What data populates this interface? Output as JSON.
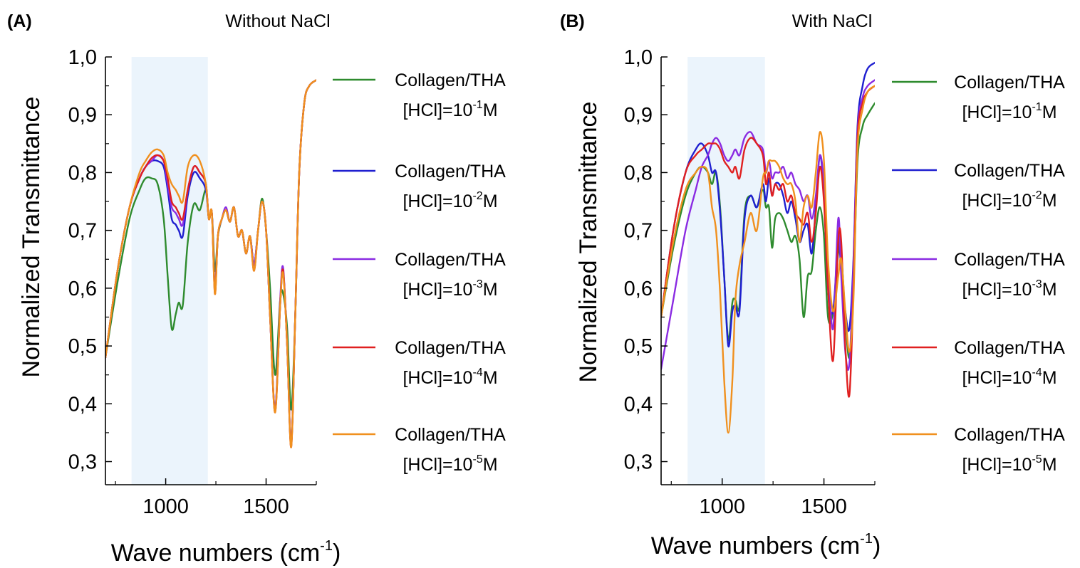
{
  "chart_data": [
    {
      "type": "line",
      "panel_label": "(A)",
      "title": "Without NaCl",
      "xlabel": "Wave numbers (cm",
      "xlabel_sup": "-1",
      "xlabel_end": ")",
      "ylabel": "Normalized Transmittance",
      "xlim": [
        700,
        1750
      ],
      "ylim": [
        0.26,
        1.0
      ],
      "xticks": [
        1000,
        1500
      ],
      "xtick_labels": [
        "1000",
        "1500"
      ],
      "yticks": [
        0.3,
        0.4,
        0.5,
        0.6,
        0.7,
        0.8,
        0.9,
        1.0
      ],
      "ytick_labels": [
        "0,3",
        "0,4",
        "0,5",
        "0,6",
        "0,7",
        "0,8",
        "0,9",
        "1,0"
      ],
      "highlight_band": [
        830,
        1210
      ],
      "series": [
        {
          "name": "Collagen/THA",
          "conc_prefix": "[HCl]=10",
          "conc_exp": "-1",
          "conc_suffix": "M",
          "color": "#2e8b2e",
          "x": [
            700,
            760,
            820,
            870,
            900,
            930,
            960,
            990,
            1010,
            1030,
            1050,
            1065,
            1085,
            1110,
            1140,
            1170,
            1200,
            1215,
            1230,
            1245,
            1260,
            1280,
            1300,
            1320,
            1340,
            1360,
            1380,
            1400,
            1420,
            1440,
            1460,
            1480,
            1500,
            1520,
            1545,
            1570,
            1585,
            1605,
            1625,
            1645,
            1665,
            1690,
            1715,
            1750
          ],
          "y": [
            0.48,
            0.61,
            0.72,
            0.77,
            0.79,
            0.79,
            0.78,
            0.72,
            0.62,
            0.53,
            0.555,
            0.575,
            0.57,
            0.68,
            0.745,
            0.735,
            0.77,
            0.72,
            0.73,
            0.63,
            0.69,
            0.72,
            0.735,
            0.715,
            0.74,
            0.69,
            0.7,
            0.66,
            0.69,
            0.64,
            0.7,
            0.755,
            0.7,
            0.6,
            0.45,
            0.58,
            0.59,
            0.53,
            0.39,
            0.55,
            0.8,
            0.92,
            0.95,
            0.96
          ]
        },
        {
          "name": "Collagen/THA",
          "conc_prefix": "[HCl]=10",
          "conc_exp": "-2",
          "conc_suffix": "M",
          "color": "#1f1fd0",
          "x": [
            700,
            760,
            820,
            870,
            900,
            930,
            960,
            990,
            1010,
            1030,
            1050,
            1065,
            1085,
            1110,
            1140,
            1170,
            1200,
            1215,
            1230,
            1245,
            1260,
            1280,
            1300,
            1320,
            1340,
            1360,
            1380,
            1400,
            1420,
            1440,
            1460,
            1480,
            1500,
            1520,
            1545,
            1570,
            1585,
            1605,
            1625,
            1645,
            1665,
            1690,
            1715,
            1750
          ],
          "y": [
            0.48,
            0.63,
            0.74,
            0.79,
            0.81,
            0.82,
            0.82,
            0.81,
            0.77,
            0.72,
            0.71,
            0.7,
            0.69,
            0.76,
            0.8,
            0.79,
            0.77,
            0.72,
            0.73,
            0.6,
            0.69,
            0.72,
            0.735,
            0.715,
            0.74,
            0.69,
            0.7,
            0.66,
            0.69,
            0.64,
            0.7,
            0.75,
            0.7,
            0.55,
            0.39,
            0.57,
            0.63,
            0.5,
            0.33,
            0.55,
            0.8,
            0.92,
            0.95,
            0.96
          ]
        },
        {
          "name": "Collagen/THA",
          "conc_prefix": "[HCl]=10",
          "conc_exp": "-3",
          "conc_suffix": "M",
          "color": "#8a2be2",
          "x": [
            700,
            760,
            820,
            870,
            900,
            930,
            960,
            990,
            1010,
            1030,
            1050,
            1065,
            1085,
            1110,
            1140,
            1170,
            1200,
            1215,
            1230,
            1245,
            1260,
            1280,
            1300,
            1320,
            1340,
            1360,
            1380,
            1400,
            1420,
            1440,
            1460,
            1480,
            1500,
            1520,
            1545,
            1570,
            1585,
            1605,
            1625,
            1645,
            1665,
            1690,
            1715,
            1750
          ],
          "y": [
            0.48,
            0.63,
            0.74,
            0.79,
            0.81,
            0.82,
            0.83,
            0.82,
            0.78,
            0.74,
            0.73,
            0.72,
            0.71,
            0.77,
            0.81,
            0.8,
            0.78,
            0.72,
            0.73,
            0.6,
            0.69,
            0.72,
            0.74,
            0.715,
            0.74,
            0.69,
            0.7,
            0.66,
            0.69,
            0.64,
            0.7,
            0.75,
            0.7,
            0.55,
            0.39,
            0.58,
            0.635,
            0.5,
            0.33,
            0.55,
            0.8,
            0.92,
            0.95,
            0.96
          ]
        },
        {
          "name": "Collagen/THA",
          "conc_prefix": "[HCl]=10",
          "conc_exp": "-4",
          "conc_suffix": "M",
          "color": "#e02020",
          "x": [
            700,
            760,
            820,
            870,
            900,
            930,
            960,
            990,
            1010,
            1030,
            1050,
            1065,
            1085,
            1110,
            1140,
            1170,
            1200,
            1215,
            1230,
            1245,
            1260,
            1280,
            1300,
            1320,
            1340,
            1360,
            1380,
            1400,
            1420,
            1440,
            1460,
            1480,
            1500,
            1520,
            1545,
            1570,
            1585,
            1605,
            1625,
            1645,
            1665,
            1690,
            1715,
            1750
          ],
          "y": [
            0.48,
            0.63,
            0.74,
            0.79,
            0.81,
            0.825,
            0.83,
            0.82,
            0.79,
            0.75,
            0.74,
            0.73,
            0.72,
            0.77,
            0.81,
            0.8,
            0.78,
            0.72,
            0.73,
            0.59,
            0.69,
            0.72,
            0.735,
            0.715,
            0.74,
            0.69,
            0.7,
            0.66,
            0.69,
            0.63,
            0.7,
            0.75,
            0.7,
            0.55,
            0.385,
            0.57,
            0.63,
            0.5,
            0.325,
            0.55,
            0.8,
            0.92,
            0.95,
            0.96
          ]
        },
        {
          "name": "Collagen/THA",
          "conc_prefix": "[HCl]=10",
          "conc_exp": "-5",
          "conc_suffix": "M",
          "color": "#f0901e",
          "x": [
            700,
            760,
            820,
            870,
            900,
            930,
            960,
            990,
            1010,
            1030,
            1050,
            1065,
            1085,
            1110,
            1140,
            1170,
            1200,
            1215,
            1230,
            1245,
            1260,
            1280,
            1300,
            1320,
            1340,
            1360,
            1380,
            1400,
            1420,
            1440,
            1460,
            1480,
            1500,
            1520,
            1545,
            1570,
            1585,
            1605,
            1625,
            1645,
            1665,
            1690,
            1715,
            1750
          ],
          "y": [
            0.48,
            0.63,
            0.74,
            0.8,
            0.82,
            0.835,
            0.84,
            0.83,
            0.8,
            0.78,
            0.77,
            0.76,
            0.75,
            0.81,
            0.83,
            0.82,
            0.78,
            0.72,
            0.73,
            0.59,
            0.69,
            0.72,
            0.735,
            0.715,
            0.74,
            0.69,
            0.7,
            0.66,
            0.69,
            0.63,
            0.7,
            0.75,
            0.7,
            0.55,
            0.385,
            0.57,
            0.625,
            0.5,
            0.325,
            0.55,
            0.8,
            0.92,
            0.95,
            0.96
          ]
        }
      ]
    },
    {
      "type": "line",
      "panel_label": "(B)",
      "title": "With NaCl",
      "xlabel": "Wave numbers (cm",
      "xlabel_sup": "-1",
      "xlabel_end": ")",
      "ylabel": "Normalized Transmittance",
      "xlim": [
        700,
        1750
      ],
      "ylim": [
        0.26,
        1.0
      ],
      "xticks": [
        1000,
        1500
      ],
      "xtick_labels": [
        "1000",
        "1500"
      ],
      "yticks": [
        0.3,
        0.4,
        0.5,
        0.6,
        0.7,
        0.8,
        0.9,
        1.0
      ],
      "ytick_labels": [
        "0,3",
        "0,4",
        "0,5",
        "0,6",
        "0,7",
        "0,8",
        "0,9",
        "1,0"
      ],
      "highlight_band": [
        830,
        1210
      ],
      "series": [
        {
          "name": "Collagen/THA",
          "conc_prefix": "[HCl]=10",
          "conc_exp": "-1",
          "conc_suffix": "M",
          "color": "#2e8b2e",
          "x": [
            700,
            760,
            820,
            870,
            900,
            930,
            950,
            970,
            990,
            1010,
            1030,
            1050,
            1065,
            1085,
            1110,
            1140,
            1170,
            1200,
            1215,
            1230,
            1245,
            1260,
            1280,
            1300,
            1320,
            1340,
            1360,
            1380,
            1400,
            1420,
            1440,
            1460,
            1480,
            1500,
            1520,
            1545,
            1570,
            1585,
            1605,
            1625,
            1645,
            1665,
            1690,
            1715,
            1750
          ],
          "y": [
            0.55,
            0.67,
            0.76,
            0.8,
            0.81,
            0.8,
            0.78,
            0.8,
            0.74,
            0.62,
            0.51,
            0.575,
            0.58,
            0.57,
            0.73,
            0.76,
            0.74,
            0.77,
            0.74,
            0.74,
            0.67,
            0.72,
            0.73,
            0.72,
            0.7,
            0.68,
            0.69,
            0.65,
            0.55,
            0.62,
            0.63,
            0.7,
            0.74,
            0.69,
            0.55,
            0.56,
            0.66,
            0.66,
            0.55,
            0.48,
            0.6,
            0.82,
            0.88,
            0.9,
            0.92
          ]
        },
        {
          "name": "Collagen/THA",
          "conc_prefix": "[HCl]=10",
          "conc_exp": "-2",
          "conc_suffix": "M",
          "color": "#1f1fd0",
          "x": [
            700,
            760,
            820,
            870,
            900,
            930,
            950,
            970,
            990,
            1010,
            1030,
            1050,
            1065,
            1085,
            1110,
            1140,
            1170,
            1200,
            1215,
            1230,
            1245,
            1260,
            1280,
            1300,
            1320,
            1340,
            1360,
            1380,
            1400,
            1420,
            1440,
            1460,
            1480,
            1500,
            1520,
            1545,
            1570,
            1585,
            1605,
            1625,
            1645,
            1665,
            1690,
            1715,
            1750
          ],
          "y": [
            0.55,
            0.7,
            0.8,
            0.84,
            0.85,
            0.83,
            0.8,
            0.8,
            0.73,
            0.62,
            0.5,
            0.56,
            0.57,
            0.56,
            0.72,
            0.76,
            0.74,
            0.78,
            0.75,
            0.79,
            0.76,
            0.78,
            0.78,
            0.76,
            0.73,
            0.75,
            0.72,
            0.68,
            0.7,
            0.71,
            0.66,
            0.74,
            0.83,
            0.76,
            0.6,
            0.56,
            0.68,
            0.63,
            0.56,
            0.53,
            0.65,
            0.88,
            0.95,
            0.98,
            0.99
          ]
        },
        {
          "name": "Collagen/THA",
          "conc_prefix": "[HCl]=10",
          "conc_exp": "-3",
          "conc_suffix": "M",
          "color": "#8a2be2",
          "x": [
            700,
            760,
            820,
            870,
            900,
            930,
            950,
            970,
            990,
            1010,
            1030,
            1050,
            1065,
            1085,
            1110,
            1140,
            1170,
            1200,
            1215,
            1230,
            1245,
            1260,
            1280,
            1300,
            1320,
            1340,
            1360,
            1380,
            1400,
            1420,
            1440,
            1460,
            1480,
            1500,
            1520,
            1545,
            1570,
            1585,
            1605,
            1625,
            1645,
            1665,
            1690,
            1715,
            1750
          ],
          "y": [
            0.46,
            0.58,
            0.7,
            0.77,
            0.81,
            0.83,
            0.85,
            0.86,
            0.85,
            0.83,
            0.82,
            0.83,
            0.84,
            0.83,
            0.86,
            0.87,
            0.85,
            0.84,
            0.8,
            0.82,
            0.79,
            0.8,
            0.8,
            0.81,
            0.79,
            0.8,
            0.78,
            0.77,
            0.75,
            0.76,
            0.72,
            0.76,
            0.83,
            0.78,
            0.64,
            0.53,
            0.72,
            0.62,
            0.49,
            0.47,
            0.64,
            0.87,
            0.93,
            0.95,
            0.96
          ]
        },
        {
          "name": "Collagen/THA",
          "conc_prefix": "[HCl]=10",
          "conc_exp": "-4",
          "conc_suffix": "M",
          "color": "#e02020",
          "x": [
            700,
            760,
            820,
            870,
            900,
            930,
            950,
            970,
            990,
            1010,
            1030,
            1050,
            1065,
            1085,
            1110,
            1140,
            1170,
            1200,
            1215,
            1230,
            1245,
            1260,
            1280,
            1300,
            1320,
            1340,
            1360,
            1380,
            1400,
            1420,
            1440,
            1460,
            1480,
            1500,
            1520,
            1545,
            1570,
            1585,
            1605,
            1625,
            1645,
            1665,
            1690,
            1715,
            1750
          ],
          "y": [
            0.55,
            0.7,
            0.8,
            0.83,
            0.84,
            0.85,
            0.85,
            0.85,
            0.84,
            0.82,
            0.81,
            0.8,
            0.81,
            0.79,
            0.84,
            0.86,
            0.85,
            0.83,
            0.78,
            0.8,
            0.76,
            0.78,
            0.77,
            0.78,
            0.75,
            0.76,
            0.73,
            0.72,
            0.71,
            0.73,
            0.68,
            0.73,
            0.81,
            0.75,
            0.6,
            0.475,
            0.68,
            0.68,
            0.5,
            0.415,
            0.6,
            0.86,
            0.92,
            0.94,
            0.95
          ]
        },
        {
          "name": "Collagen/THA",
          "conc_prefix": "[HCl]=10",
          "conc_exp": "-5",
          "conc_suffix": "M",
          "color": "#f0901e",
          "x": [
            700,
            760,
            820,
            870,
            900,
            930,
            950,
            970,
            990,
            1010,
            1030,
            1050,
            1065,
            1085,
            1110,
            1140,
            1170,
            1200,
            1215,
            1230,
            1245,
            1260,
            1280,
            1300,
            1320,
            1340,
            1360,
            1380,
            1400,
            1420,
            1440,
            1460,
            1480,
            1500,
            1520,
            1545,
            1570,
            1585,
            1605,
            1625,
            1645,
            1665,
            1690,
            1715,
            1750
          ],
          "y": [
            0.55,
            0.68,
            0.77,
            0.8,
            0.81,
            0.8,
            0.74,
            0.7,
            0.59,
            0.44,
            0.35,
            0.44,
            0.58,
            0.64,
            0.68,
            0.73,
            0.7,
            0.79,
            0.8,
            0.82,
            0.82,
            0.82,
            0.81,
            0.79,
            0.78,
            0.78,
            0.75,
            0.68,
            0.74,
            0.76,
            0.74,
            0.8,
            0.87,
            0.82,
            0.65,
            0.56,
            0.62,
            0.65,
            0.56,
            0.49,
            0.58,
            0.84,
            0.91,
            0.94,
            0.95
          ]
        }
      ]
    }
  ]
}
